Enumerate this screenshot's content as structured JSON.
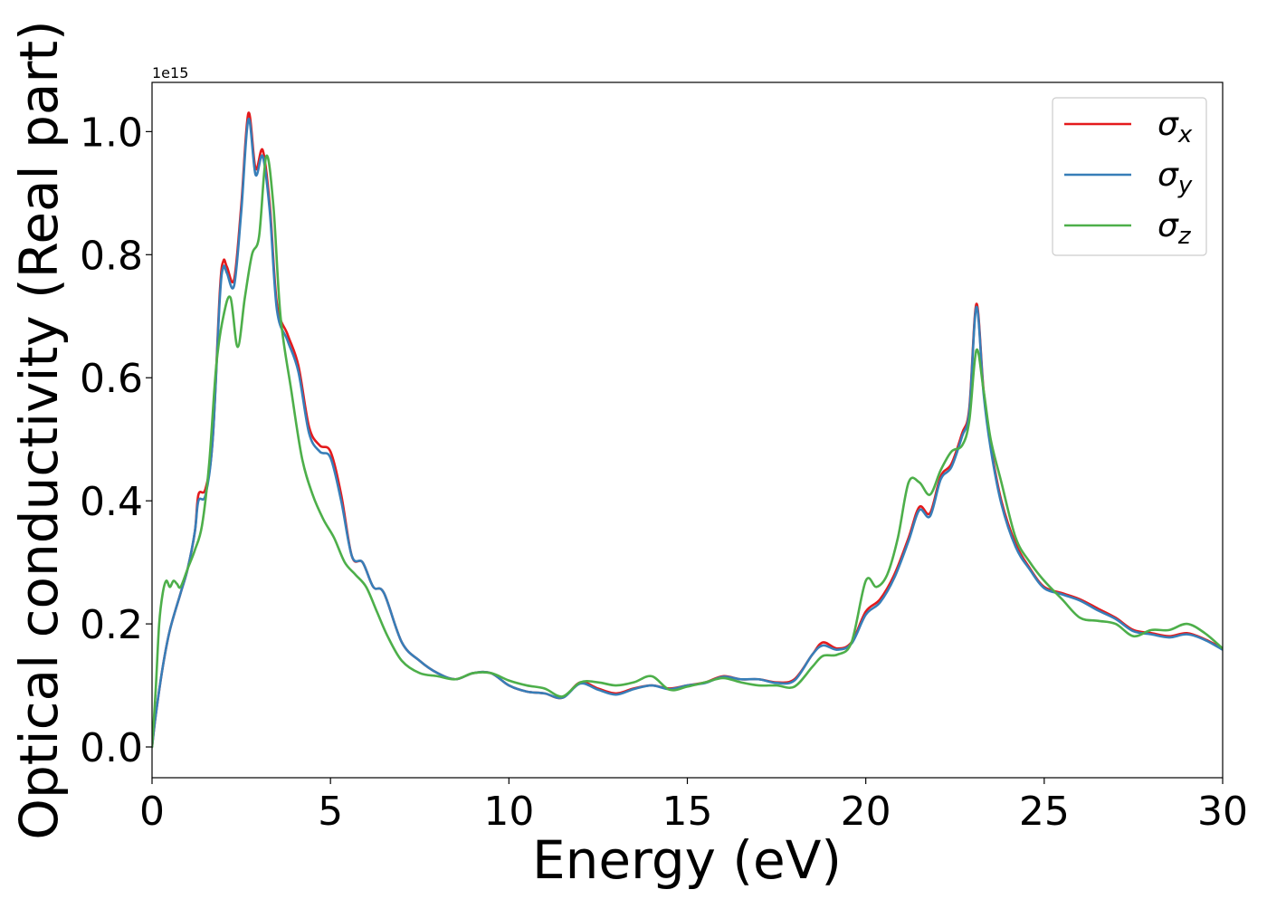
{
  "chart_data": {
    "type": "line",
    "title": "",
    "xlabel": "Energy (eV)",
    "ylabel": "Optical conductivity (Real part)",
    "offset_text": "1e15",
    "xlim": [
      0,
      30
    ],
    "ylim": [
      -0.05,
      1.08
    ],
    "xticks": [
      0,
      5,
      10,
      15,
      20,
      25,
      30
    ],
    "xtick_labels": [
      "0",
      "5",
      "10",
      "15",
      "20",
      "25",
      "30"
    ],
    "yticks": [
      0.0,
      0.2,
      0.4,
      0.6,
      0.8,
      1.0
    ],
    "ytick_labels": [
      "0.0",
      "0.2",
      "0.4",
      "0.6",
      "0.8",
      "1.0"
    ],
    "grid": false,
    "legend_position": "top-right",
    "series": [
      {
        "name": "σ_x",
        "label_main": "σ",
        "label_sub": "x",
        "color": "#e41a1c",
        "x": [
          0,
          0.1,
          0.3,
          0.5,
          0.8,
          1.0,
          1.2,
          1.3,
          1.5,
          1.7,
          1.9,
          2.0,
          2.1,
          2.3,
          2.5,
          2.7,
          2.9,
          3.1,
          3.3,
          3.5,
          3.8,
          4.1,
          4.4,
          4.7,
          5.0,
          5.3,
          5.6,
          5.9,
          6.2,
          6.5,
          7.0,
          7.5,
          8.0,
          8.5,
          9.0,
          9.5,
          10.0,
          10.5,
          11.0,
          11.5,
          12.0,
          12.5,
          13.0,
          13.5,
          14.0,
          14.5,
          15.0,
          15.5,
          16.0,
          16.5,
          17.0,
          17.5,
          18.0,
          18.5,
          18.8,
          19.2,
          19.6,
          20.0,
          20.4,
          20.8,
          21.2,
          21.5,
          21.8,
          22.1,
          22.4,
          22.7,
          22.9,
          23.1,
          23.3,
          23.5,
          23.8,
          24.2,
          24.6,
          25.0,
          25.5,
          26.0,
          26.5,
          27.0,
          27.5,
          28.0,
          28.5,
          29.0,
          29.5,
          30.0
        ],
        "y": [
          0.0,
          0.05,
          0.13,
          0.19,
          0.25,
          0.29,
          0.35,
          0.41,
          0.42,
          0.5,
          0.74,
          0.79,
          0.78,
          0.76,
          0.88,
          1.03,
          0.94,
          0.97,
          0.88,
          0.72,
          0.67,
          0.62,
          0.52,
          0.49,
          0.48,
          0.41,
          0.31,
          0.3,
          0.26,
          0.25,
          0.17,
          0.14,
          0.12,
          0.11,
          0.12,
          0.12,
          0.1,
          0.09,
          0.087,
          0.08,
          0.105,
          0.095,
          0.087,
          0.095,
          0.1,
          0.095,
          0.1,
          0.105,
          0.115,
          0.11,
          0.11,
          0.105,
          0.11,
          0.15,
          0.17,
          0.16,
          0.17,
          0.22,
          0.24,
          0.28,
          0.34,
          0.39,
          0.38,
          0.44,
          0.46,
          0.51,
          0.55,
          0.72,
          0.58,
          0.49,
          0.4,
          0.33,
          0.29,
          0.26,
          0.25,
          0.24,
          0.225,
          0.21,
          0.19,
          0.185,
          0.18,
          0.185,
          0.175,
          0.16
        ]
      },
      {
        "name": "σ_y",
        "label_main": "σ",
        "label_sub": "y",
        "color": "#377eb8",
        "x": [
          0,
          0.1,
          0.3,
          0.5,
          0.8,
          1.0,
          1.2,
          1.3,
          1.5,
          1.7,
          1.9,
          2.0,
          2.1,
          2.3,
          2.5,
          2.7,
          2.9,
          3.1,
          3.3,
          3.5,
          3.8,
          4.1,
          4.4,
          4.7,
          5.0,
          5.3,
          5.6,
          5.9,
          6.2,
          6.5,
          7.0,
          7.5,
          8.0,
          8.5,
          9.0,
          9.5,
          10.0,
          10.5,
          11.0,
          11.5,
          12.0,
          12.5,
          13.0,
          13.5,
          14.0,
          14.5,
          15.0,
          15.5,
          16.0,
          16.5,
          17.0,
          17.5,
          18.0,
          18.5,
          18.8,
          19.2,
          19.6,
          20.0,
          20.4,
          20.8,
          21.2,
          21.5,
          21.8,
          22.1,
          22.4,
          22.7,
          22.9,
          23.1,
          23.3,
          23.5,
          23.8,
          24.2,
          24.6,
          25.0,
          25.5,
          26.0,
          26.5,
          27.0,
          27.5,
          28.0,
          28.5,
          29.0,
          29.5,
          30.0
        ],
        "y": [
          0.0,
          0.05,
          0.13,
          0.19,
          0.25,
          0.29,
          0.35,
          0.4,
          0.41,
          0.5,
          0.73,
          0.78,
          0.77,
          0.75,
          0.87,
          1.02,
          0.93,
          0.96,
          0.87,
          0.71,
          0.66,
          0.61,
          0.51,
          0.48,
          0.47,
          0.4,
          0.31,
          0.3,
          0.26,
          0.25,
          0.17,
          0.14,
          0.12,
          0.11,
          0.12,
          0.12,
          0.1,
          0.09,
          0.087,
          0.08,
          0.103,
          0.093,
          0.085,
          0.094,
          0.1,
          0.094,
          0.1,
          0.104,
          0.114,
          0.11,
          0.11,
          0.104,
          0.108,
          0.15,
          0.165,
          0.158,
          0.168,
          0.215,
          0.235,
          0.275,
          0.335,
          0.385,
          0.375,
          0.435,
          0.455,
          0.505,
          0.545,
          0.715,
          0.575,
          0.485,
          0.395,
          0.325,
          0.288,
          0.258,
          0.248,
          0.238,
          0.222,
          0.208,
          0.188,
          0.183,
          0.178,
          0.183,
          0.174,
          0.158
        ]
      },
      {
        "name": "σ_z",
        "label_main": "σ",
        "label_sub": "z",
        "color": "#4daf4a",
        "x": [
          0,
          0.1,
          0.2,
          0.3,
          0.4,
          0.5,
          0.6,
          0.7,
          0.8,
          1.0,
          1.2,
          1.4,
          1.6,
          1.8,
          2.0,
          2.2,
          2.4,
          2.6,
          2.8,
          3.0,
          3.2,
          3.4,
          3.6,
          3.9,
          4.2,
          4.5,
          4.8,
          5.1,
          5.4,
          5.7,
          6.0,
          6.3,
          6.6,
          7.0,
          7.5,
          8.0,
          8.5,
          9.0,
          9.5,
          10.0,
          10.5,
          11.0,
          11.5,
          12.0,
          12.5,
          13.0,
          13.5,
          14.0,
          14.5,
          15.0,
          15.5,
          16.0,
          16.5,
          17.0,
          17.5,
          18.0,
          18.5,
          18.8,
          19.2,
          19.6,
          20.0,
          20.3,
          20.6,
          20.9,
          21.2,
          21.5,
          21.8,
          22.1,
          22.4,
          22.7,
          22.9,
          23.1,
          23.3,
          23.5,
          23.8,
          24.2,
          24.6,
          25.0,
          25.5,
          26.0,
          26.5,
          27.0,
          27.5,
          28.0,
          28.5,
          29.0,
          29.5,
          30.0
        ],
        "y": [
          0.0,
          0.09,
          0.2,
          0.25,
          0.27,
          0.26,
          0.27,
          0.265,
          0.26,
          0.29,
          0.32,
          0.36,
          0.46,
          0.62,
          0.7,
          0.73,
          0.65,
          0.73,
          0.8,
          0.83,
          0.96,
          0.88,
          0.7,
          0.58,
          0.47,
          0.41,
          0.37,
          0.34,
          0.3,
          0.28,
          0.26,
          0.22,
          0.18,
          0.14,
          0.12,
          0.115,
          0.11,
          0.12,
          0.12,
          0.108,
          0.1,
          0.095,
          0.082,
          0.105,
          0.105,
          0.1,
          0.105,
          0.115,
          0.093,
          0.098,
          0.105,
          0.112,
          0.105,
          0.1,
          0.1,
          0.098,
          0.13,
          0.148,
          0.15,
          0.17,
          0.27,
          0.26,
          0.28,
          0.34,
          0.43,
          0.43,
          0.41,
          0.45,
          0.48,
          0.49,
          0.53,
          0.645,
          0.58,
          0.5,
          0.43,
          0.34,
          0.3,
          0.27,
          0.24,
          0.21,
          0.205,
          0.2,
          0.18,
          0.19,
          0.19,
          0.2,
          0.185,
          0.16
        ]
      }
    ]
  }
}
